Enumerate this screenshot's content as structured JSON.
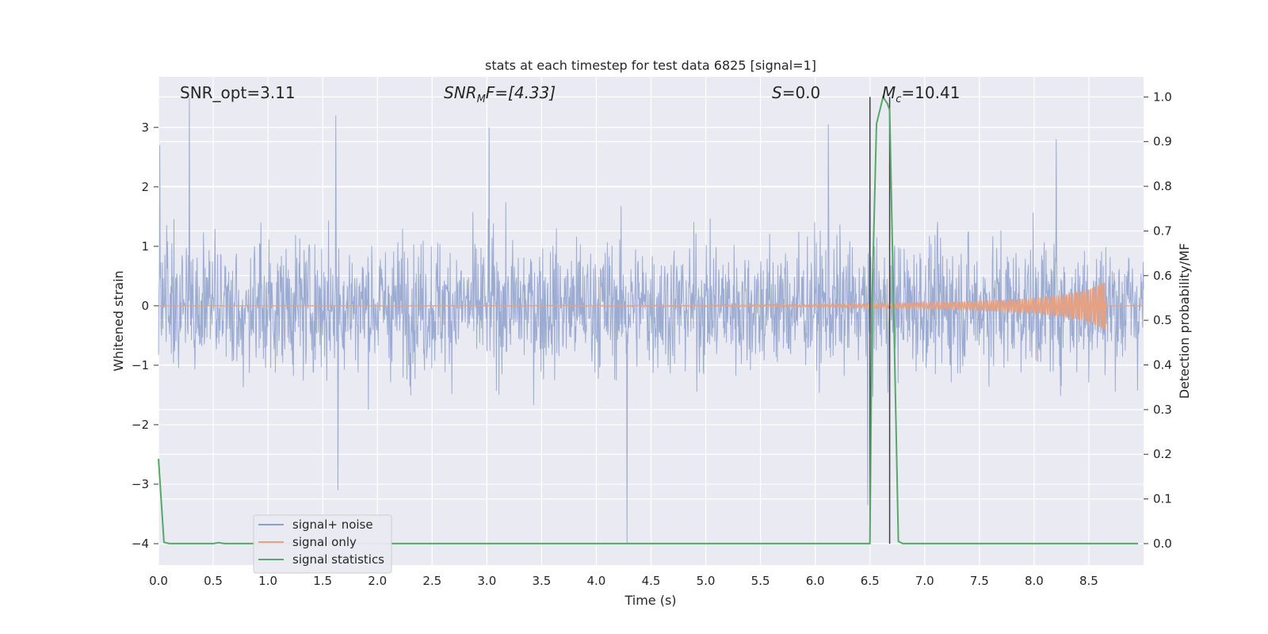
{
  "chart_data": {
    "type": "line",
    "title": "stats at each timestep for test data 6825 [signal=1]",
    "xlabel": "Time (s)",
    "ylabel": "Whitened strain",
    "y2label": "Detection probability/MF",
    "xlim": [
      0.0,
      9.0
    ],
    "ylim": [
      -4.36,
      3.85
    ],
    "y2lim": [
      -0.048,
      1.045
    ],
    "grid": true,
    "legend_position": "lower-left",
    "x_ticks": [
      "0.0",
      "0.5",
      "1.0",
      "1.5",
      "2.0",
      "2.5",
      "3.0",
      "3.5",
      "4.0",
      "4.5",
      "5.0",
      "5.5",
      "6.0",
      "6.5",
      "7.0",
      "7.5",
      "8.0",
      "8.5"
    ],
    "y_ticks": [
      "−4",
      "−3",
      "−2",
      "−1",
      "0",
      "1",
      "2",
      "3"
    ],
    "y2_ticks": [
      "0.0",
      "0.1",
      "0.2",
      "0.3",
      "0.4",
      "0.5",
      "0.6",
      "0.7",
      "0.8",
      "0.9",
      "1.0"
    ],
    "annotations": {
      "snr_opt": "SNR_opt=3.11",
      "snr_mf_base": "SNR",
      "snr_mf_sub": "M",
      "snr_mf_rest": "F=[4.33]",
      "s_var": "S",
      "s_rest": "=0.0",
      "mc_base": "M",
      "mc_sub": "c",
      "mc_rest": "=10.41"
    },
    "series": [
      {
        "name": "signal+ noise",
        "color": "#8da0cb",
        "description_values": "whitened strain noise, amplitude mostly within about ±2, extremes near +3.5 and −4.0",
        "peak_values": [
          {
            "x": 0.01,
            "y": 2.7
          },
          {
            "x": 0.28,
            "y": 3.5
          },
          {
            "x": 1.62,
            "y": 3.2
          },
          {
            "x": 1.64,
            "y": -3.1
          },
          {
            "x": 3.02,
            "y": 3.0
          },
          {
            "x": 4.28,
            "y": -4.0
          },
          {
            "x": 6.12,
            "y": 3.05
          },
          {
            "x": 6.48,
            "y": -3.35
          },
          {
            "x": 8.2,
            "y": 2.8
          }
        ]
      },
      {
        "name": "signal only",
        "color": "#e5a183",
        "envelope": {
          "x": [
            0.0,
            5.0,
            6.0,
            7.0,
            7.5,
            8.0,
            8.3,
            8.5,
            8.6,
            8.65,
            8.66,
            9.0
          ],
          "amplitude": [
            0.0,
            0.01,
            0.02,
            0.05,
            0.08,
            0.13,
            0.2,
            0.3,
            0.4,
            0.45,
            0.0,
            0.0
          ]
        }
      },
      {
        "name": "signal statistics",
        "color": "#55a868",
        "axis": "y2",
        "x": [
          0.0,
          0.05,
          0.1,
          0.15,
          0.5,
          0.55,
          0.6,
          1.0,
          2.0,
          3.0,
          4.0,
          5.0,
          6.0,
          6.5,
          6.52,
          6.56,
          6.62,
          6.66,
          6.68,
          6.76,
          6.8,
          7.0,
          8.0,
          8.95
        ],
        "y": [
          0.19,
          0.003,
          0.0,
          0.0,
          0.0,
          0.002,
          0.0,
          0.0,
          0.0,
          0.0,
          0.0,
          0.0,
          0.0,
          0.0,
          0.55,
          0.94,
          1.0,
          0.985,
          0.97,
          0.005,
          0.0,
          0.0,
          0.0,
          0.0
        ]
      }
    ],
    "vertical_lines": {
      "color": "#404040",
      "x": [
        6.5,
        6.68
      ],
      "y2_top": 1.0,
      "y2_bottom": 0.0
    }
  }
}
